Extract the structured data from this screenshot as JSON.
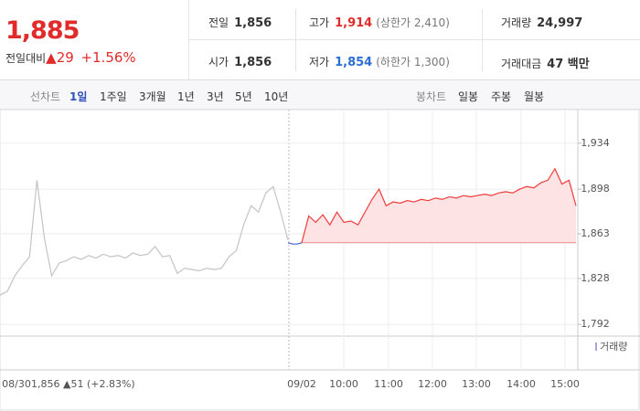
{
  "header": {
    "price": "1,885",
    "change_label": "전일대비",
    "change": "▲29",
    "change_pct": "+1.56%"
  },
  "summary": [
    [
      {
        "label": "전일",
        "value": "1,856"
      },
      {
        "label": "고가",
        "value": "1,914",
        "note": "(상한가 2,410)"
      },
      {
        "label": "거래량",
        "value": "24,997"
      }
    ],
    [
      {
        "label": "시가",
        "value": "1,856"
      },
      {
        "label": "저가",
        "value": "1,854",
        "note": "(하한가 1,300)"
      },
      {
        "label": "거래대금",
        "value": "47 백만"
      }
    ]
  ],
  "tabs": {
    "line_label": "선차트",
    "line": [
      "1일",
      "1주일",
      "3개월",
      "1년",
      "3년",
      "5년",
      "10년"
    ],
    "candle_label": "봉차트",
    "candle": [
      "일봉",
      "주봉",
      "월봉"
    ]
  },
  "chart_data": {
    "type": "line",
    "ylim": [
      1785,
      1946
    ],
    "yticks": [
      {
        "value": 1934,
        "label": "1,934"
      },
      {
        "value": 1898,
        "label": "1,898"
      },
      {
        "value": 1863,
        "label": "1,863"
      },
      {
        "value": 1828,
        "label": "1,828"
      },
      {
        "value": 1792,
        "label": "1,792"
      }
    ],
    "x_labels": [
      "08/30",
      "09/02",
      "10:00",
      "11:00",
      "12:00",
      "13:00",
      "14:00",
      "15:00"
    ],
    "prev_note": "1,856 ▲51 (+2.83%)",
    "volume_label": "거래량",
    "baseline": 1856,
    "series": [
      {
        "color": "#c4c4c4",
        "values": [
          1815,
          1818,
          1830,
          1838,
          1845,
          1905,
          1860,
          1830,
          1840,
          1842,
          1845,
          1843,
          1846,
          1844,
          1847,
          1845,
          1846,
          1844,
          1848,
          1846,
          1847,
          1853,
          1845,
          1846,
          1832,
          1836,
          1835,
          1834,
          1836,
          1835,
          1836,
          1845,
          1850,
          1870,
          1885,
          1880,
          1895,
          1900,
          1880,
          1858
        ]
      },
      {
        "color": "#3e63c8",
        "values": [
          1856,
          1855,
          1855,
          1856
        ]
      },
      {
        "color": "#f03c3c",
        "values": [
          1856,
          1877,
          1872,
          1878,
          1870,
          1880,
          1872,
          1873,
          1870,
          1880,
          1890,
          1898,
          1885,
          1888,
          1887,
          1889,
          1888,
          1890,
          1889,
          1891,
          1890,
          1892,
          1891,
          1893,
          1892,
          1893,
          1894,
          1893,
          1895,
          1896,
          1895,
          1898,
          1900,
          1899,
          1903,
          1905,
          1914,
          1902,
          1905,
          1885
        ]
      }
    ]
  }
}
